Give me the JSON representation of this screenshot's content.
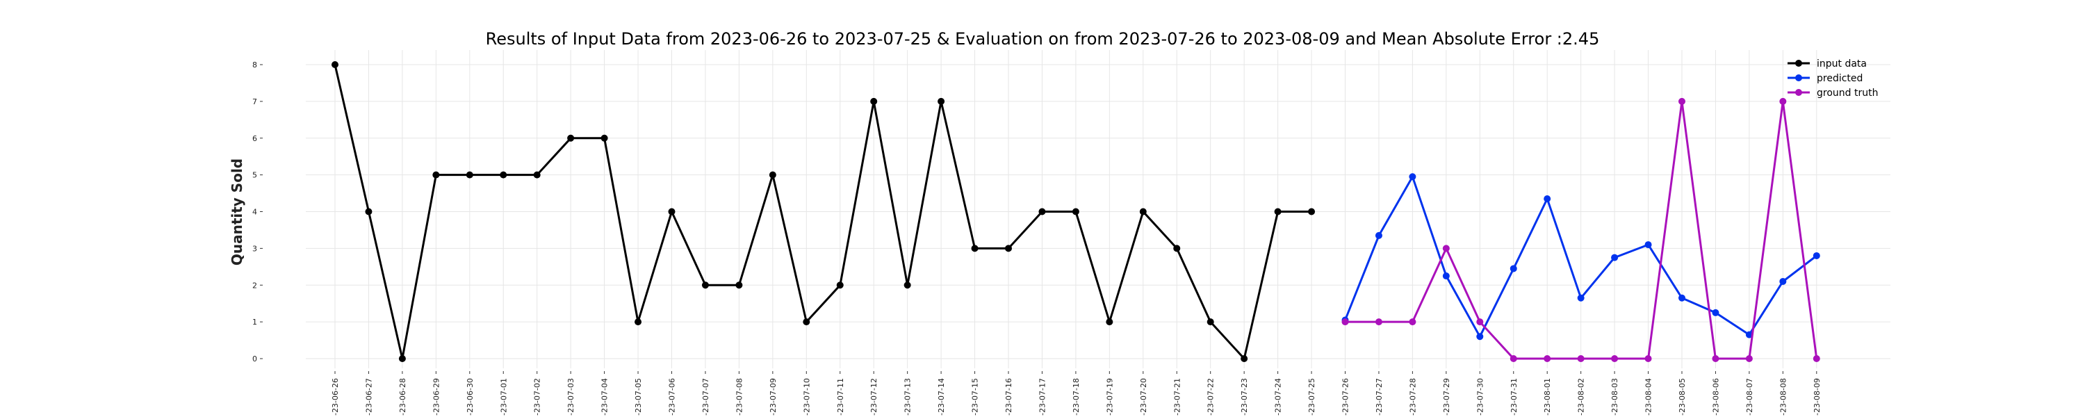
{
  "chart_data": {
    "type": "line",
    "title": "Results of Input Data from 2023-06-26 to 2023-07-25 & Evaluation on from 2023-07-26 to 2023-08-09 and Mean Absolute Error  :2.45",
    "xlabel": "",
    "ylabel": "Quantity Sold",
    "ylim": [
      0,
      8
    ],
    "yticks": [
      "0",
      "1",
      "2",
      "3",
      "4",
      "5",
      "6",
      "7",
      "8"
    ],
    "grid": true,
    "legend_position": "top-right",
    "x": [
      "2023-06-26",
      "2023-06-27",
      "2023-06-28",
      "2023-06-29",
      "2023-06-30",
      "2023-07-01",
      "2023-07-02",
      "2023-07-03",
      "2023-07-04",
      "2023-07-05",
      "2023-07-06",
      "2023-07-07",
      "2023-07-08",
      "2023-07-09",
      "2023-07-10",
      "2023-07-11",
      "2023-07-12",
      "2023-07-13",
      "2023-07-14",
      "2023-07-15",
      "2023-07-16",
      "2023-07-17",
      "2023-07-18",
      "2023-07-19",
      "2023-07-20",
      "2023-07-21",
      "2023-07-22",
      "2023-07-23",
      "2023-07-24",
      "2023-07-25",
      "2023-07-26",
      "2023-07-27",
      "2023-07-28",
      "2023-07-29",
      "2023-07-30",
      "2023-07-31",
      "2023-08-01",
      "2023-08-02",
      "2023-08-03",
      "2023-08-04",
      "2023-08-05",
      "2023-08-06",
      "2023-08-07",
      "2023-08-08",
      "2023-08-09"
    ],
    "xtick_labels": [
      "-23-06-26",
      "-23-06-27",
      "-23-06-28",
      "-23-06-29",
      "-23-06-30",
      "-23-07-01",
      "-23-07-02",
      "-23-07-03",
      "-23-07-04",
      "-23-07-05",
      "-23-07-06",
      "-23-07-07",
      "-23-07-08",
      "-23-07-09",
      "-23-07-10",
      "-23-07-11",
      "-23-07-12",
      "-23-07-13",
      "-23-07-14",
      "-23-07-15",
      "-23-07-16",
      "-23-07-17",
      "-23-07-18",
      "-23-07-19",
      "-23-07-20",
      "-23-07-21",
      "-23-07-22",
      "-23-07-23",
      "-23-07-24",
      "-23-07-25",
      "-23-07-26",
      "-23-07-27",
      "-23-07-28",
      "-23-07-29",
      "-23-07-30",
      "-23-07-31",
      "-23-08-01",
      "-23-08-02",
      "-23-08-03",
      "-23-08-04",
      "-23-08-05",
      "-23-08-06",
      "-23-08-07",
      "-23-08-08",
      "-23-08-09"
    ],
    "series": [
      {
        "name": "input data",
        "color": "#000000",
        "x": [
          "2023-06-26",
          "2023-06-27",
          "2023-06-28",
          "2023-06-29",
          "2023-06-30",
          "2023-07-01",
          "2023-07-02",
          "2023-07-03",
          "2023-07-04",
          "2023-07-05",
          "2023-07-06",
          "2023-07-07",
          "2023-07-08",
          "2023-07-09",
          "2023-07-10",
          "2023-07-11",
          "2023-07-12",
          "2023-07-13",
          "2023-07-14",
          "2023-07-15",
          "2023-07-16",
          "2023-07-17",
          "2023-07-18",
          "2023-07-19",
          "2023-07-20",
          "2023-07-21",
          "2023-07-22",
          "2023-07-23",
          "2023-07-24",
          "2023-07-25"
        ],
        "values": [
          8,
          4,
          0,
          5,
          5,
          5,
          5,
          6,
          6,
          1,
          4,
          2,
          2,
          5,
          1,
          2,
          7,
          2,
          7,
          3,
          3,
          4,
          4,
          1,
          4,
          3,
          1,
          0,
          4,
          4
        ]
      },
      {
        "name": "predicted",
        "color": "#0033ee",
        "x": [
          "2023-07-26",
          "2023-07-27",
          "2023-07-28",
          "2023-07-29",
          "2023-07-30",
          "2023-07-31",
          "2023-08-01",
          "2023-08-02",
          "2023-08-03",
          "2023-08-04",
          "2023-08-05",
          "2023-08-06",
          "2023-08-07",
          "2023-08-08",
          "2023-08-09"
        ],
        "values": [
          1.05,
          3.35,
          4.95,
          2.25,
          0.6,
          2.45,
          4.35,
          1.65,
          2.75,
          3.1,
          1.65,
          1.25,
          0.65,
          2.1,
          2.8
        ]
      },
      {
        "name": "ground truth",
        "color": "#aa11bb",
        "x": [
          "2023-07-26",
          "2023-07-27",
          "2023-07-28",
          "2023-07-29",
          "2023-07-30",
          "2023-07-31",
          "2023-08-01",
          "2023-08-02",
          "2023-08-03",
          "2023-08-04",
          "2023-08-05",
          "2023-08-06",
          "2023-08-07",
          "2023-08-08",
          "2023-08-09"
        ],
        "values": [
          1,
          1,
          1,
          3,
          1,
          0,
          0,
          0,
          0,
          0,
          7,
          0,
          0,
          7,
          0
        ]
      }
    ]
  }
}
